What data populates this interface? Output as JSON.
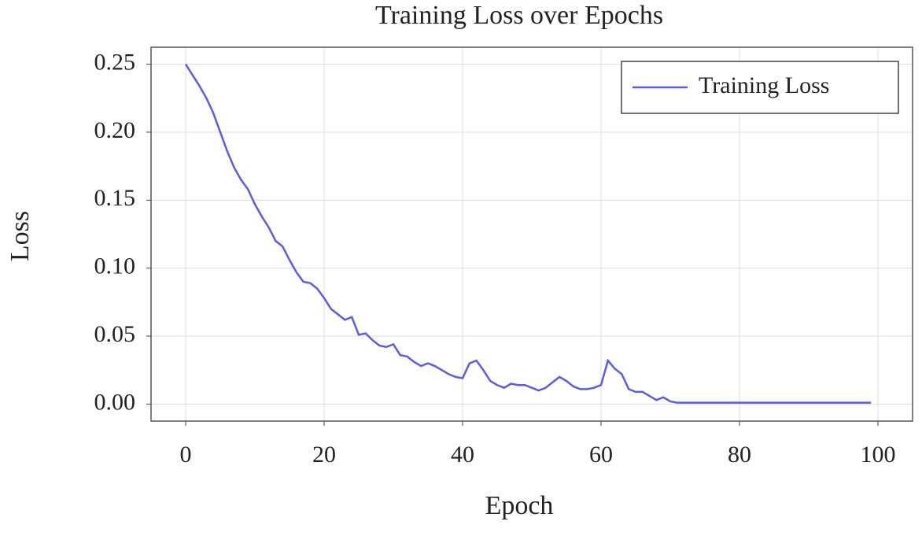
{
  "chart_data": {
    "type": "line",
    "title": "Training Loss over Epochs",
    "xlabel": "Epoch",
    "ylabel": "Loss",
    "x": [
      0,
      1,
      2,
      3,
      4,
      5,
      6,
      7,
      8,
      9,
      10,
      11,
      12,
      13,
      14,
      15,
      16,
      17,
      18,
      19,
      20,
      21,
      22,
      23,
      24,
      25,
      26,
      27,
      28,
      29,
      30,
      31,
      32,
      33,
      34,
      35,
      36,
      37,
      38,
      39,
      40,
      41,
      42,
      43,
      44,
      45,
      46,
      47,
      48,
      49,
      50,
      51,
      52,
      53,
      54,
      55,
      56,
      57,
      58,
      59,
      60,
      61,
      62,
      63,
      64,
      65,
      66,
      67,
      68,
      69,
      70,
      71,
      72,
      73,
      74,
      75,
      76,
      77,
      78,
      79,
      80,
      81,
      82,
      83,
      84,
      85,
      86,
      87,
      88,
      89,
      90,
      91,
      92,
      93,
      94,
      95,
      96,
      97,
      98,
      99
    ],
    "series": [
      {
        "name": "Training Loss",
        "color": "#5a5af0",
        "values": [
          0.25,
          0.242,
          0.234,
          0.225,
          0.214,
          0.2,
          0.186,
          0.174,
          0.165,
          0.158,
          0.147,
          0.138,
          0.13,
          0.12,
          0.116,
          0.106,
          0.097,
          0.09,
          0.089,
          0.085,
          0.078,
          0.07,
          0.066,
          0.062,
          0.064,
          0.051,
          0.052,
          0.047,
          0.043,
          0.042,
          0.044,
          0.036,
          0.035,
          0.031,
          0.028,
          0.03,
          0.028,
          0.025,
          0.022,
          0.02,
          0.019,
          0.03,
          0.032,
          0.025,
          0.017,
          0.014,
          0.012,
          0.015,
          0.014,
          0.014,
          0.012,
          0.01,
          0.012,
          0.016,
          0.02,
          0.017,
          0.013,
          0.011,
          0.011,
          0.012,
          0.014,
          0.032,
          0.026,
          0.022,
          0.011,
          0.009,
          0.009,
          0.006,
          0.003,
          0.005,
          0.002,
          0.001,
          0.001,
          0.001,
          0.001,
          0.001,
          0.001,
          0.001,
          0.001,
          0.001,
          0.001,
          0.001,
          0.001,
          0.001,
          0.001,
          0.001,
          0.001,
          0.001,
          0.001,
          0.001,
          0.001,
          0.001,
          0.001,
          0.001,
          0.001,
          0.001,
          0.001,
          0.001,
          0.001,
          0.001
        ]
      }
    ],
    "xlim": [
      -5,
      105
    ],
    "ylim": [
      -0.0125,
      0.2625
    ],
    "xticks": [
      0,
      20,
      40,
      60,
      80,
      100
    ],
    "yticks": [
      {
        "value": 0,
        "label": "0.00"
      },
      0.05,
      {
        "value": 0.1,
        "label": "0.10"
      },
      0.15,
      {
        "value": 0.2,
        "label": "0.20"
      },
      0.25
    ],
    "grid": true,
    "legend": "upper right"
  }
}
